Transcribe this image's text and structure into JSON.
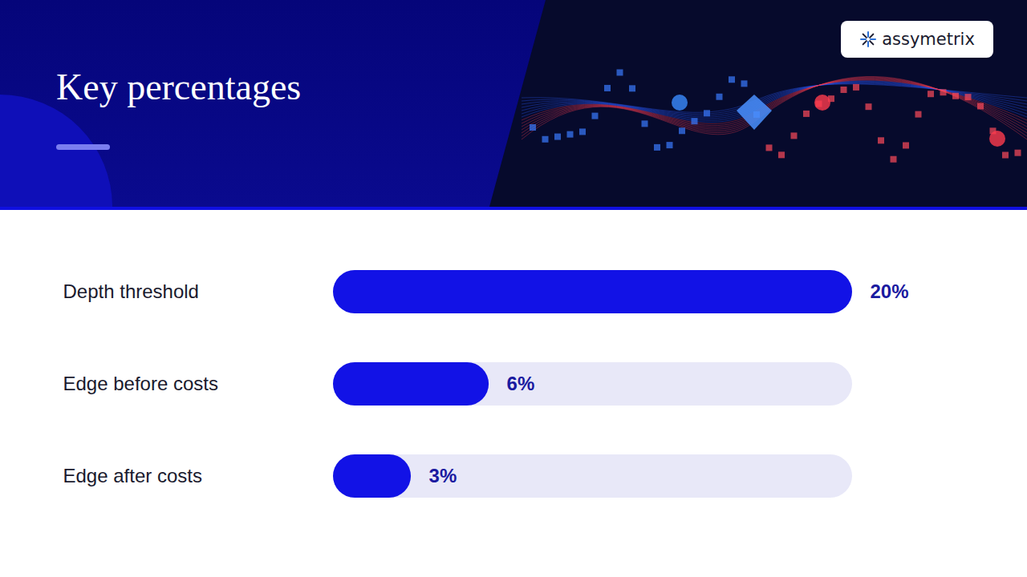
{
  "chart_data": {
    "type": "bar",
    "title": "Key percentages",
    "orientation": "horizontal",
    "categories": [
      "Depth threshold",
      "Edge before costs",
      "Edge after costs"
    ],
    "values": [
      20,
      6,
      3
    ],
    "value_labels": [
      "20%",
      "6%",
      "3%"
    ],
    "color": "#1212e6",
    "xlim": [
      0,
      20
    ],
    "xticks": [
      0,
      20
    ],
    "data_labels": true,
    "tick_labels": "y",
    "grid": false
  },
  "logo": "assymetrix"
}
